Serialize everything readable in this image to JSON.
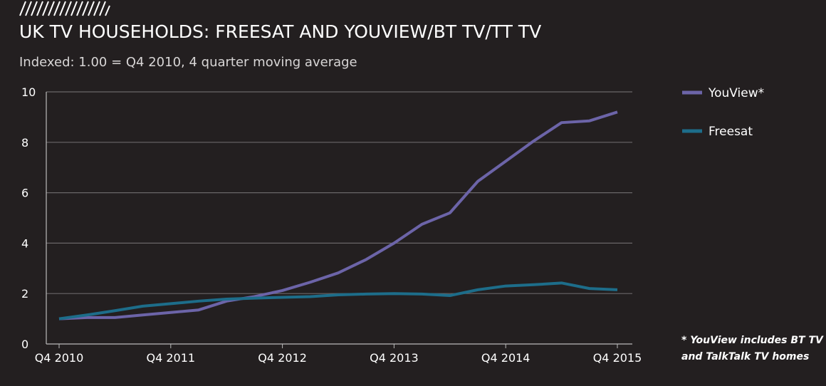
{
  "chart_data": {
    "type": "line",
    "title": "UK TV HOUSEHOLDS: FREESAT AND YOUVIEW/BT TV/TT TV",
    "subtitle": "Indexed: 1.00 = Q4 2010, 4 quarter moving average",
    "note": [
      "* YouView includes BT TV",
      "and TalkTalk TV homes"
    ],
    "categories": [
      "Q4 2010",
      null,
      null,
      null,
      "Q4 2011",
      null,
      null,
      null,
      "Q4 2012",
      null,
      null,
      null,
      "Q4 2013",
      null,
      null,
      null,
      "Q4 2014",
      null,
      null,
      null,
      "Q4 2015"
    ],
    "series": [
      {
        "name": "YouView*",
        "color": "#6c64a8",
        "values": [
          1.0,
          1.05,
          1.05,
          1.15,
          1.25,
          1.35,
          1.7,
          1.88,
          2.12,
          2.45,
          2.82,
          3.35,
          4.0,
          4.75,
          5.2,
          6.45,
          7.25,
          8.05,
          8.78,
          8.85,
          9.2
        ]
      },
      {
        "name": "Freesat",
        "color": "#1d6d8a",
        "values": [
          1.0,
          1.15,
          1.32,
          1.5,
          1.6,
          1.7,
          1.78,
          1.82,
          1.85,
          1.88,
          1.95,
          1.98,
          2.0,
          1.98,
          1.92,
          2.15,
          2.3,
          2.35,
          2.42,
          2.2,
          2.15
        ]
      }
    ],
    "ylim": [
      0,
      10
    ],
    "yticks": [
      0,
      2,
      4,
      6,
      8,
      10
    ],
    "grid": true
  }
}
